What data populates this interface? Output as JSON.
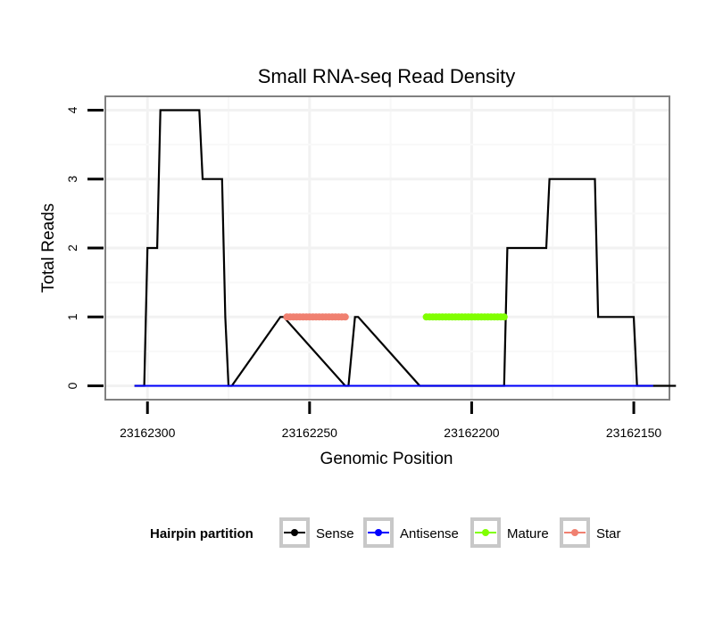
{
  "chart_data": {
    "type": "line",
    "title": "Small RNA-seq Read Density",
    "xlabel": "Genomic Position",
    "ylabel": "Total Reads",
    "x_reversed": true,
    "xlim": [
      23162313,
      23162139
    ],
    "ylim": [
      -0.2,
      4.2
    ],
    "xticks": [
      23162300,
      23162250,
      23162200,
      23162150
    ],
    "xtick_labels": [
      "23162300",
      "23162250",
      "23162200",
      "23162150"
    ],
    "yticks": [
      0,
      1,
      2,
      3,
      4
    ],
    "ytick_labels": [
      "0",
      "1",
      "2",
      "3",
      "4"
    ],
    "grid": true,
    "legend": {
      "title": "Hairpin partition",
      "position": "bottom",
      "entries": [
        "Sense",
        "Antisense",
        "Mature",
        "Star"
      ]
    },
    "series": [
      {
        "name": "Sense",
        "color": "#000000",
        "x": [
          23162304,
          23162301,
          23162300,
          23162297,
          23162296,
          23162284,
          23162283,
          23162277,
          23162276,
          23162276,
          23162275,
          23162274,
          23162259,
          23162258,
          23162239,
          23162238,
          23162236,
          23162235,
          23162216,
          23162215,
          23162190,
          23162189,
          23162177,
          23162176,
          23162162,
          23162161,
          23162158,
          23162150,
          23162149,
          23162144,
          23162143,
          23162137
        ],
        "y": [
          0,
          0,
          2,
          2,
          4,
          4,
          3,
          3,
          1,
          1,
          0,
          0,
          1,
          1,
          0,
          0,
          1,
          1,
          0,
          0,
          0,
          2,
          2,
          3,
          3,
          1,
          1,
          1,
          0,
          0,
          0,
          0
        ]
      },
      {
        "name": "Antisense",
        "color": "#0000ff",
        "x": [
          23162304,
          23162144
        ],
        "y": [
          0,
          0
        ]
      },
      {
        "name": "Mature",
        "color": "#80ff00",
        "x": [
          23162214,
          23162190
        ],
        "y": [
          1,
          1
        ]
      },
      {
        "name": "Star",
        "color": "#f08070",
        "x": [
          23162257,
          23162239
        ],
        "y": [
          1,
          1
        ]
      }
    ]
  }
}
